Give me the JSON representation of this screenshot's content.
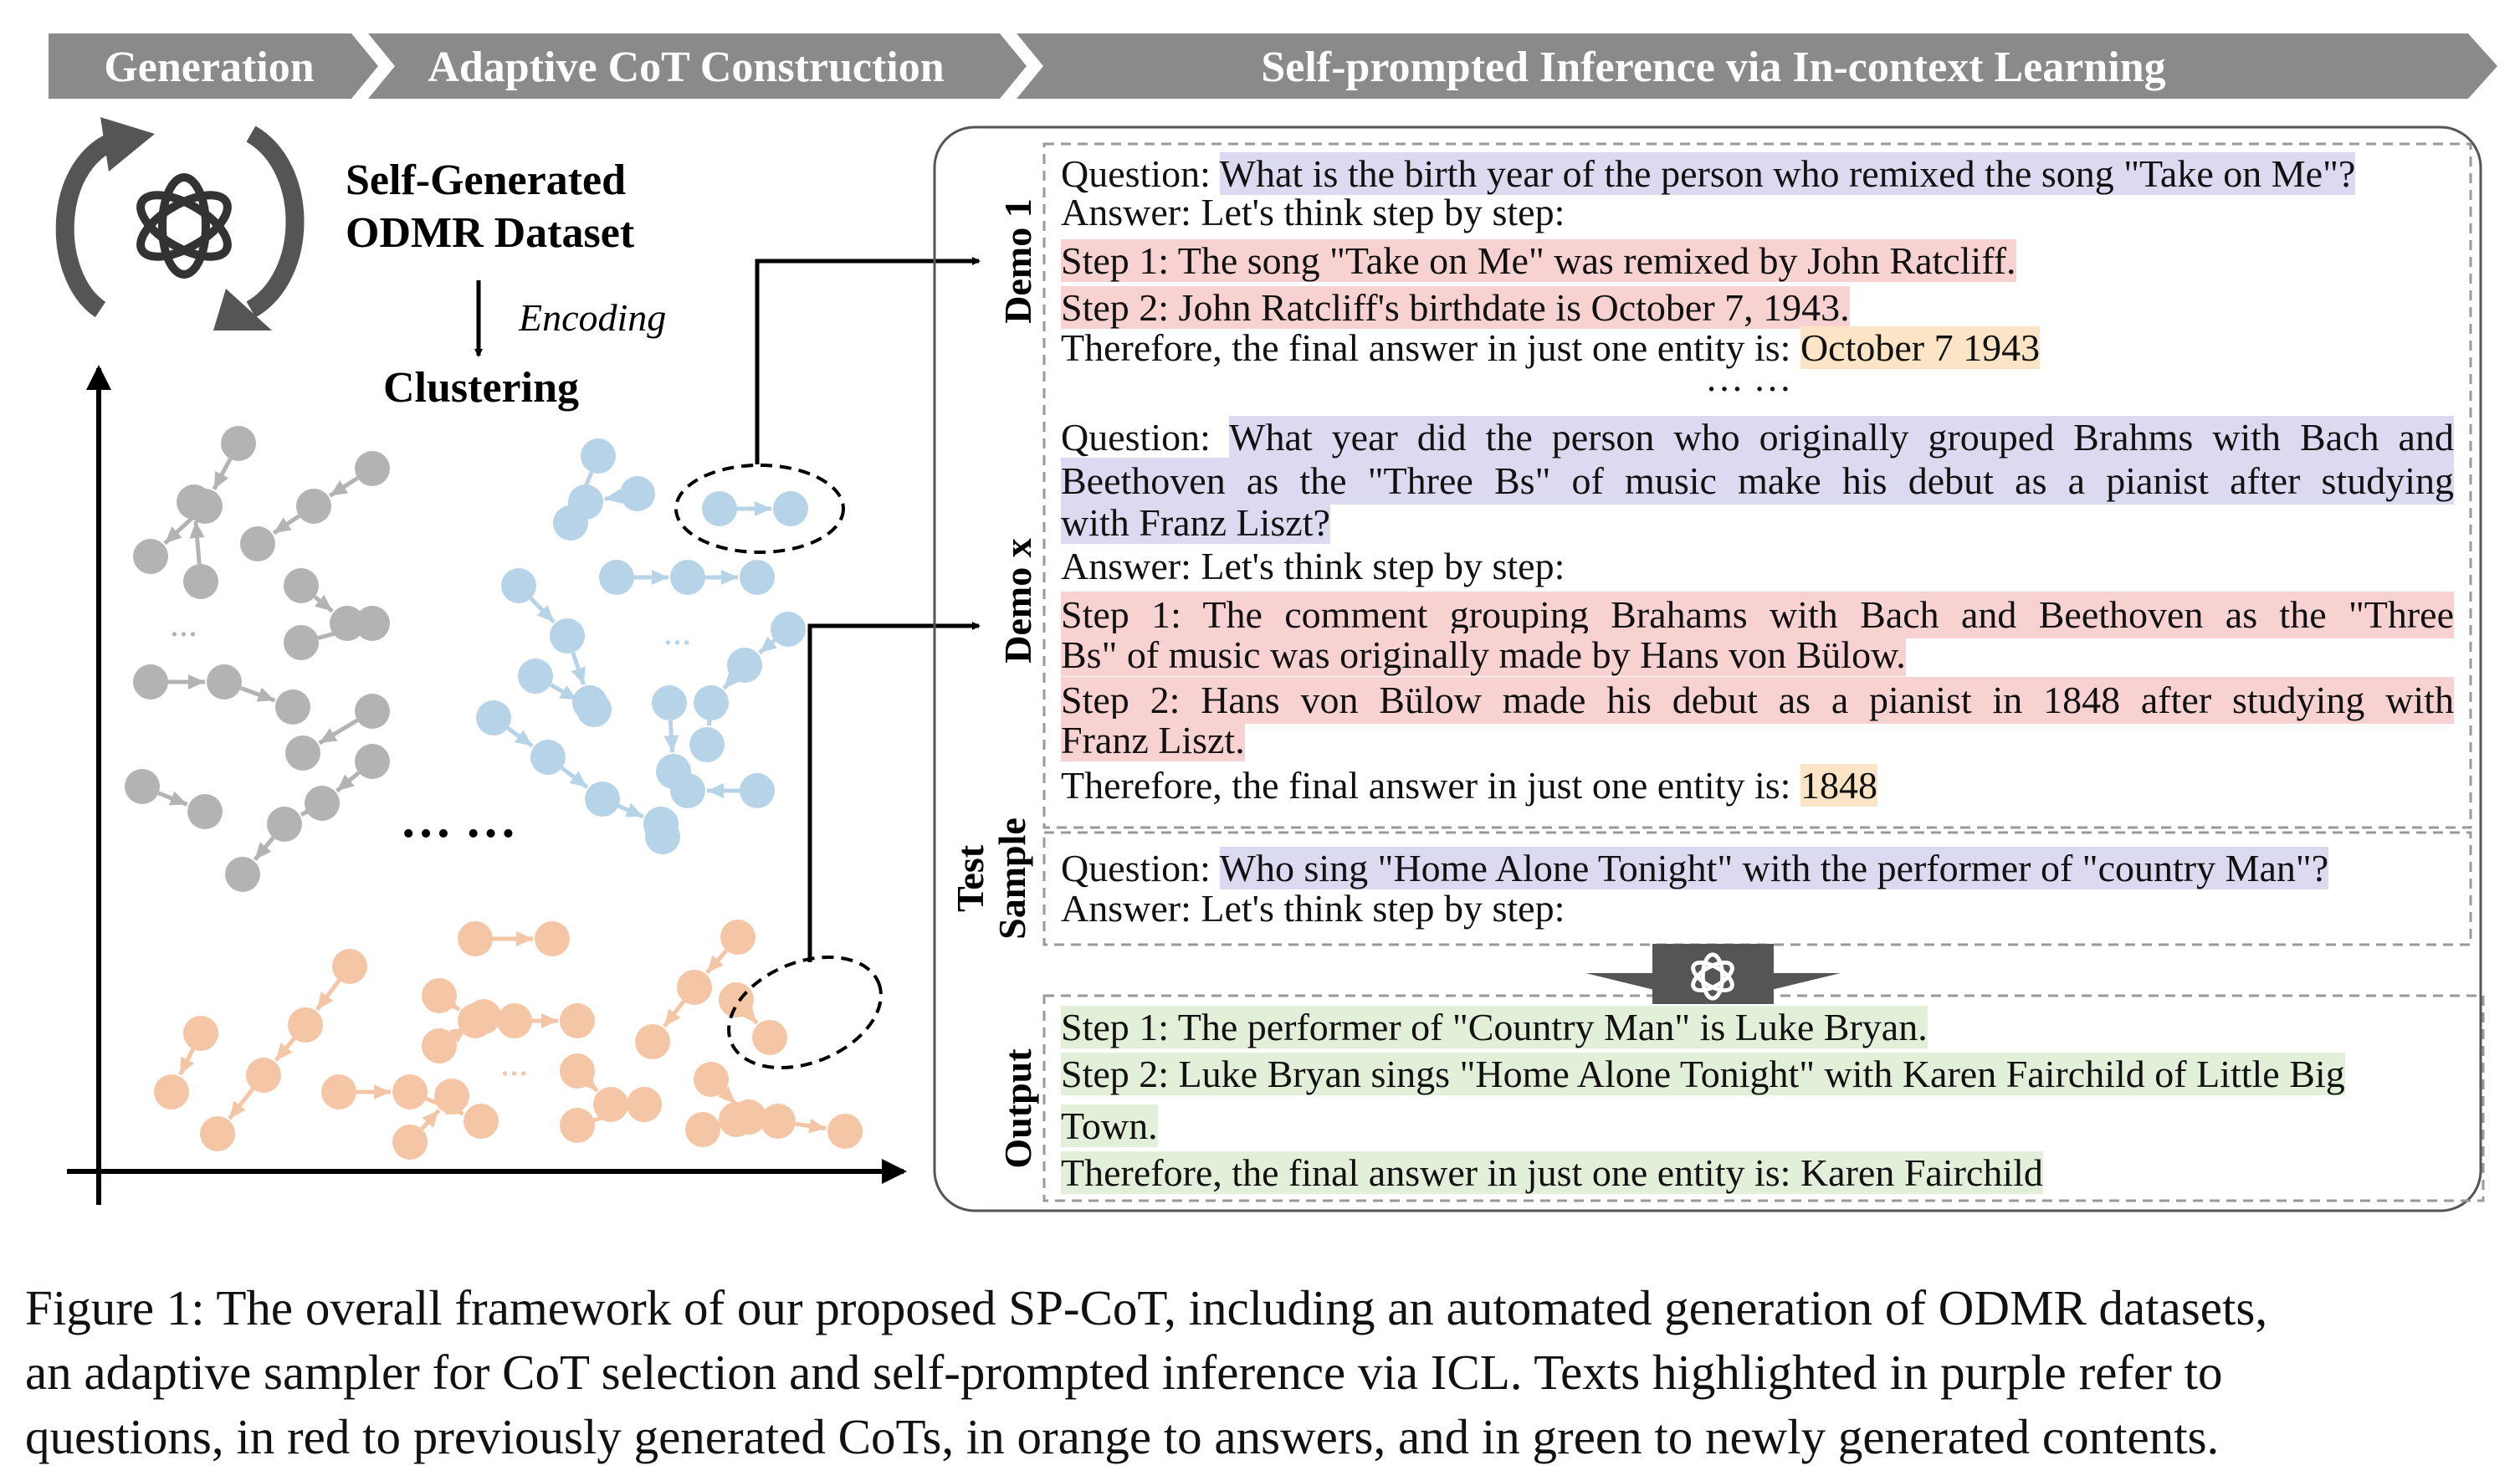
{
  "header": {
    "stage1": "Generation",
    "stage2": "Adaptive CoT Construction",
    "stage3": "Self-prompted Inference via In-context Learning"
  },
  "left": {
    "dataset_line1": "Self-Generated",
    "dataset_line2": "ODMR Dataset",
    "encoding": "Encoding",
    "clustering": "Clustering",
    "ellipsis_gray": "...",
    "ellipsis_blue": "...",
    "ellipsis_orange": "...",
    "ellipsis_center": "… …"
  },
  "colors": {
    "header_bg": "#8a8a8a",
    "gray_cluster": "#b3b3b3",
    "blue_cluster": "#b7d3e8",
    "orange_cluster": "#f4c6a5",
    "hl_question": "#dcdaf0",
    "hl_cot": "#f7d2d1",
    "hl_answer": "#fbe5c6",
    "hl_output": "#e2efd9"
  },
  "panel": {
    "labels": {
      "demo1": "Demo 1",
      "demox": "Demo x",
      "test1": "Test",
      "test2": "Sample",
      "output": "Output"
    },
    "demo1": {
      "q_prefix": "Question: ",
      "q_text": "What is the birth year of the person who remixed the song \"Take on Me\"?",
      "answer": "Answer: Let's think step by step:",
      "step1": "Step 1: The song \"Take on Me\" was remixed by John Ratcliff.",
      "step2": "Step 2: John Ratcliff's birthdate is October 7, 1943.",
      "final_prefix": "Therefore, the final answer in just one entity is: ",
      "final_answer": "October 7 1943"
    },
    "gap": "… …",
    "demox": {
      "q_prefix": "Question: ",
      "q_line1": "What year did the person who originally grouped Brahms with Bach and",
      "q_line2": "Beethoven as the \"Three Bs\" of music make his debut as a pianist after studying",
      "q_line3": "with Franz Liszt?",
      "answer": "Answer: Let's think step by step:",
      "step1_line1": "Step 1: The comment grouping Brahams with Bach and Beethoven as the \"Three",
      "step1_line2": "Bs\" of music was originally made by Hans von Bülow.",
      "step2_line1": "Step 2: Hans von Bülow made his debut as a pianist in 1848 after studying with",
      "step2_line2": "Franz Liszt.",
      "final_prefix": "Therefore, the final answer in just one entity is: ",
      "final_answer": "1848"
    },
    "test": {
      "q_prefix": "Question: ",
      "q_text": "Who sing \"Home Alone Tonight\" with the performer of \"country Man\"?",
      "answer": "Answer: Let's think step by step:"
    },
    "output": {
      "step1": "Step 1: The performer of \"Country Man\" is Luke Bryan.",
      "step2_line1": "Step 2: Luke Bryan sings \"Home Alone Tonight\" with Karen Fairchild of Little Big",
      "step2_line2": "Town.",
      "final": "Therefore, the final answer in just one entity is: Karen Fairchild"
    }
  },
  "caption": {
    "line1": "Figure 1: The overall framework of our proposed SP-CoT, including an automated generation of ODMR datasets,",
    "line2": "an adaptive sampler for CoT selection and self-prompted inference via ICL. Texts highlighted in purple refer to",
    "line3": "questions, in red to previously generated CoTs, in orange to answers, and in green to newly generated contents."
  }
}
